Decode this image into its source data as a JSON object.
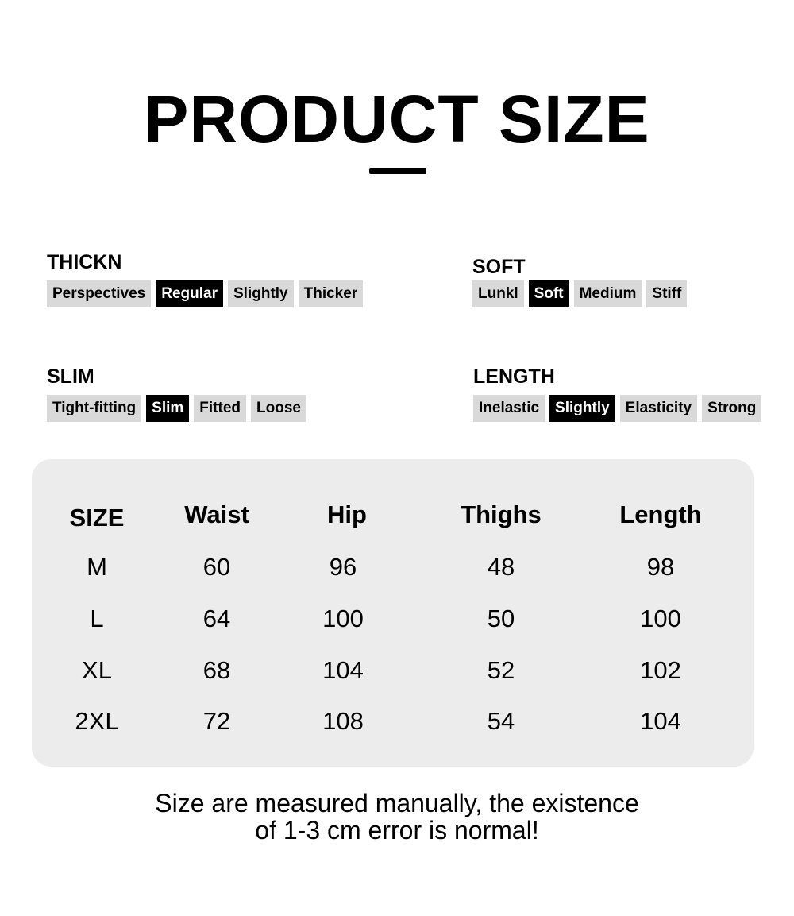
{
  "title": "PRODUCT SIZE",
  "attributes": [
    {
      "label": "THICKN",
      "options": [
        "Perspectives",
        "Regular",
        "Slightly",
        "Thicker"
      ],
      "selected": 1
    },
    {
      "label": "SOFT",
      "options": [
        "Lunkl",
        "Soft",
        "Medium",
        "Stiff"
      ],
      "selected": 1
    },
    {
      "label": "SLIM",
      "options": [
        "Tight-fitting",
        "Slim",
        "Fitted",
        "Loose"
      ],
      "selected": 1
    },
    {
      "label": "LENGTH",
      "options": [
        "Inelastic",
        "Slightly",
        "Elasticity",
        "Strong"
      ],
      "selected": 1
    }
  ],
  "table": {
    "headers": [
      "SIZE",
      "Waist",
      "Hip",
      "Thighs",
      "Length"
    ],
    "rows": [
      [
        "M",
        "60",
        "96",
        "48",
        "98"
      ],
      [
        "L",
        "64",
        "100",
        "50",
        "100"
      ],
      [
        "XL",
        "68",
        "104",
        "52",
        "102"
      ],
      [
        "2XL",
        "72",
        "108",
        "54",
        "104"
      ]
    ]
  },
  "note": [
    "Size are measured manually, the existence",
    "of 1-3 cm error is normal!"
  ],
  "colors": {
    "chip": "#d9d9d9",
    "chip_selected": "#000000",
    "panel": "#ececec"
  }
}
